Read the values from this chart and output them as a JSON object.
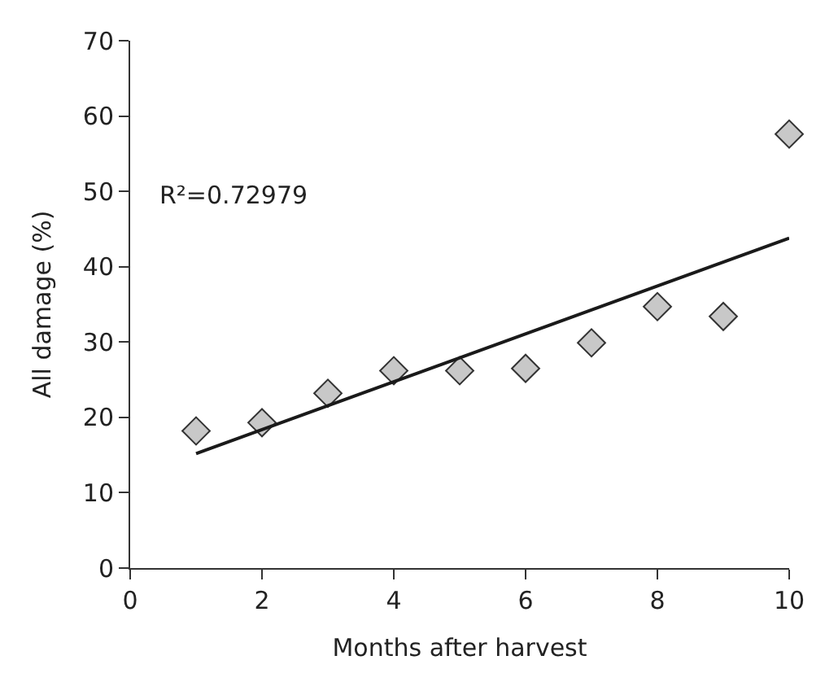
{
  "chart_data": {
    "type": "scatter",
    "xlabel": "Months after harvest",
    "ylabel": "All damage (%)",
    "xlim": [
      0,
      10
    ],
    "xticks": [
      0,
      2,
      4,
      6,
      8,
      10
    ],
    "ylim": [
      0,
      70
    ],
    "yticks": [
      0,
      10,
      20,
      30,
      40,
      50,
      60,
      70
    ],
    "marker": "diamond",
    "annotations": [
      "R²=0.72979"
    ],
    "series": [
      {
        "color": "#c8c8c8",
        "x": [
          1,
          2,
          3,
          4,
          5,
          6,
          7,
          8,
          9,
          10
        ],
        "values": [
          18.2,
          19.3,
          23.2,
          26.2,
          26.2,
          26.5,
          29.9,
          34.7,
          33.4,
          57.6
        ]
      },
      {
        "type": "line",
        "color": "#1a1a1a",
        "marker": "none",
        "line_style": "solid",
        "x": [
          1,
          10
        ],
        "values": [
          15.2,
          43.8
        ]
      }
    ]
  }
}
